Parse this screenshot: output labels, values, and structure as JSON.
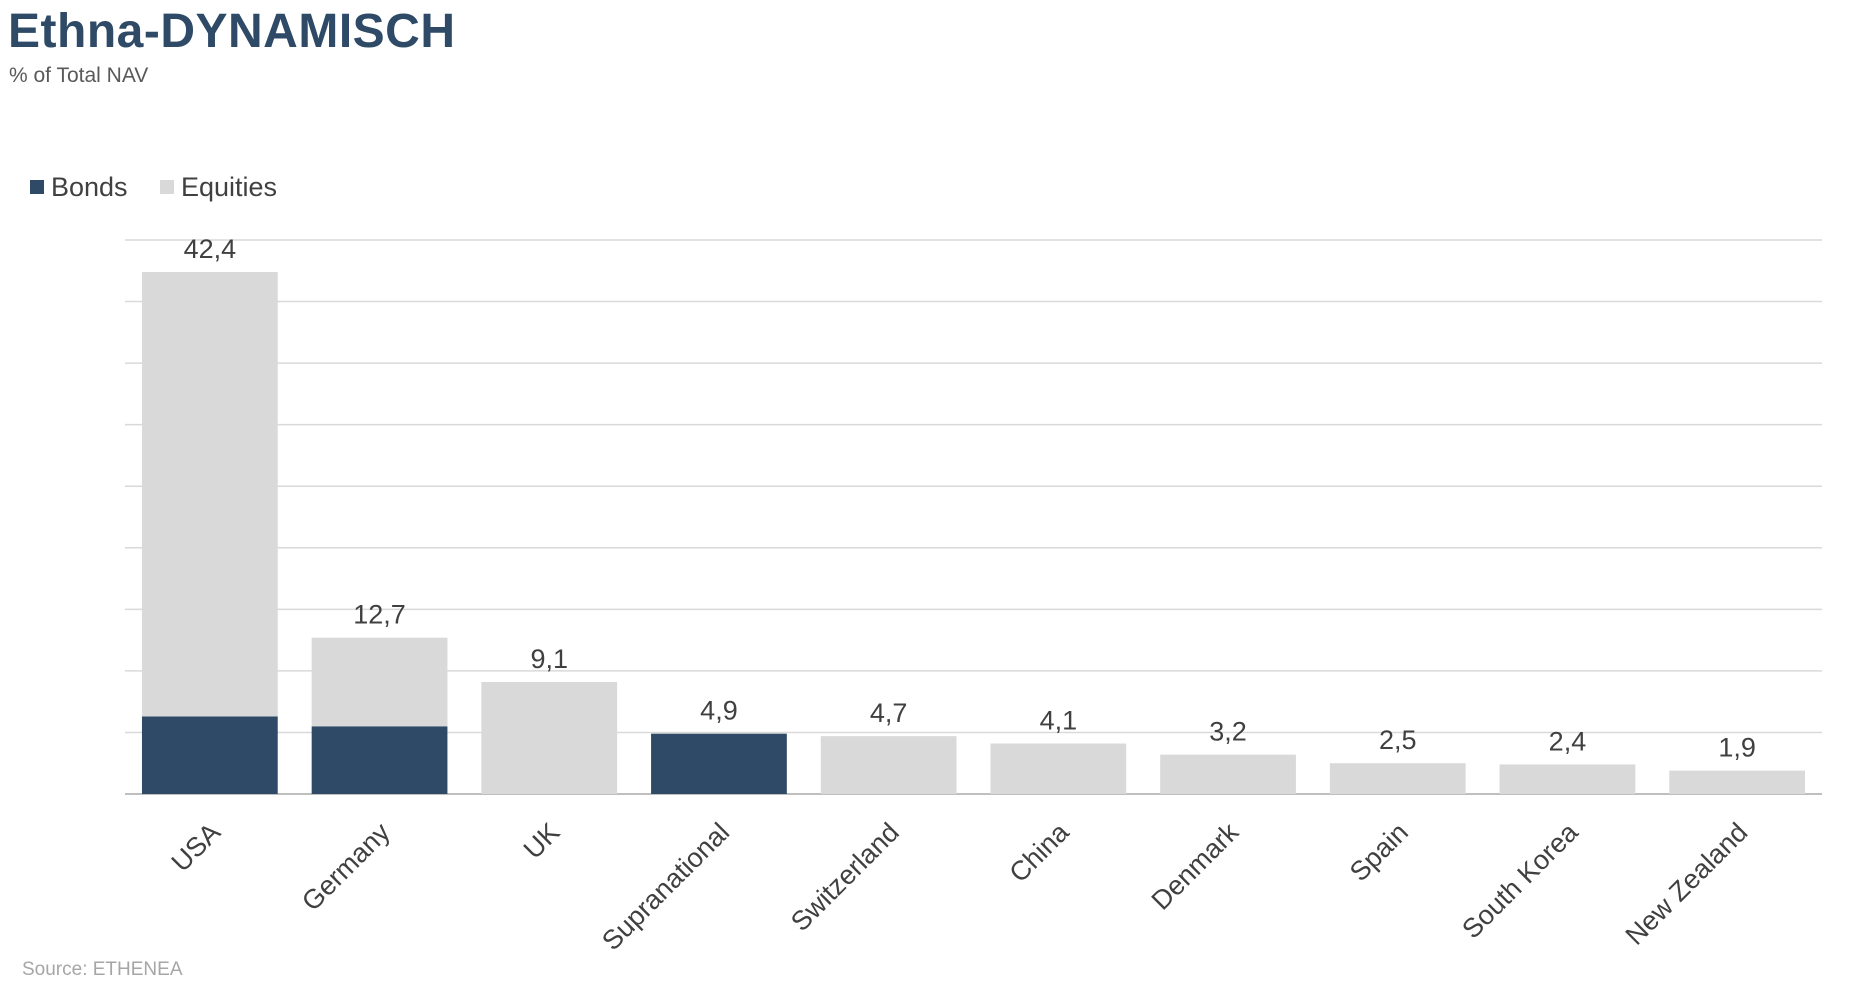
{
  "title": "Ethna-DYNAMISCH",
  "subtitle": "% of Total NAV",
  "source": "Source: ETHENEA",
  "colors": {
    "bonds": "#2e4a67",
    "equities": "#d9d9d9",
    "grid": "#d9d9d9",
    "text": "#404040",
    "title": "#2e4a67"
  },
  "chart_data": {
    "type": "bar",
    "stacked": true,
    "categories": [
      "USA",
      "Germany",
      "UK",
      "Supranational",
      "Switzerland",
      "China",
      "Denmark",
      "Spain",
      "South Korea",
      "New Zealand"
    ],
    "series": [
      {
        "name": "Bonds",
        "values": [
          6.3,
          5.5,
          0,
          4.9,
          0,
          0,
          0,
          0,
          0,
          0
        ]
      },
      {
        "name": "Equities",
        "values": [
          36.1,
          7.2,
          9.1,
          0,
          4.7,
          4.1,
          3.2,
          2.5,
          2.4,
          1.9
        ]
      }
    ],
    "total_labels": [
      "42,4",
      "12,7",
      "9,1",
      "4,9",
      "4,7",
      "4,1",
      "3,2",
      "2,5",
      "2,4",
      "1,9"
    ],
    "ylim": [
      0,
      45
    ],
    "grid": true,
    "legend": "top-left",
    "xlabel": "",
    "ylabel": ""
  }
}
